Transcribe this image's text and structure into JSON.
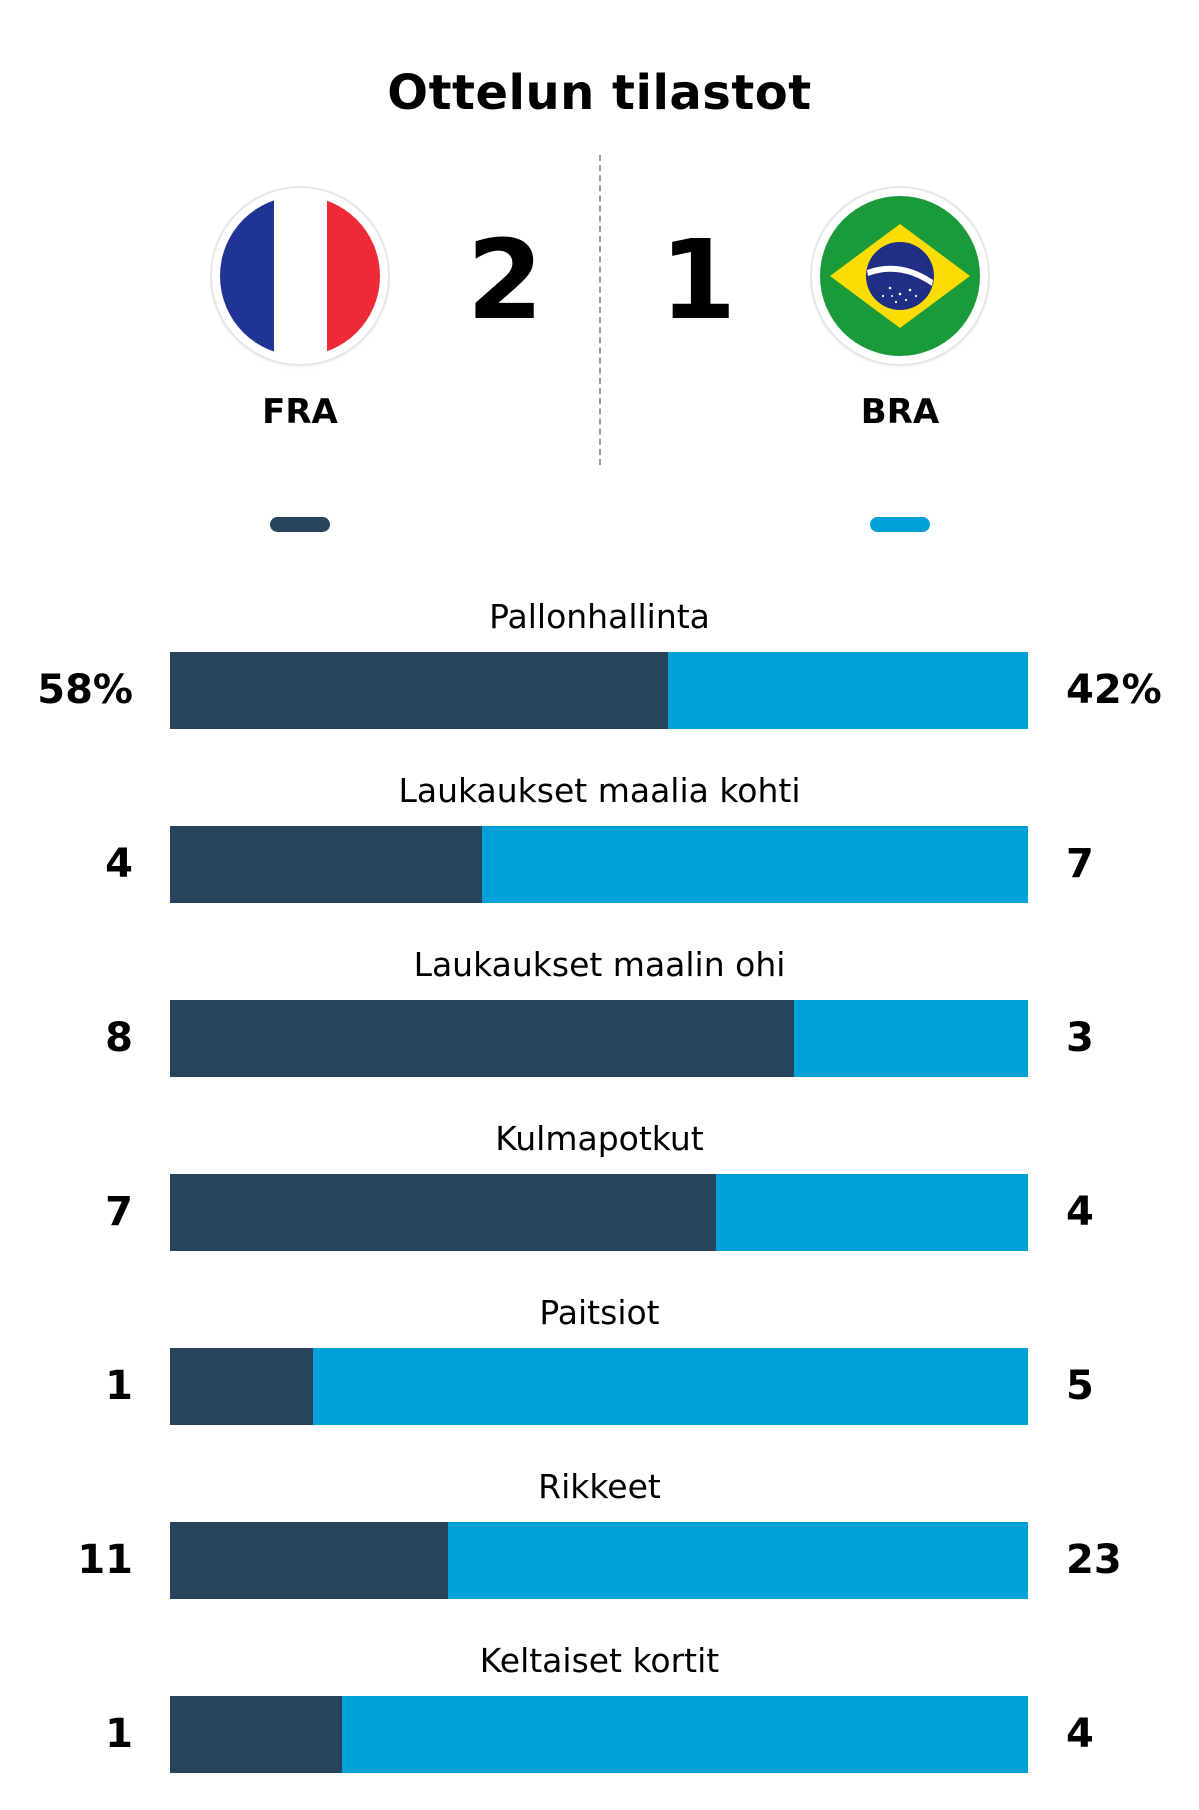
{
  "title": "Ottelun tilastot",
  "colors": {
    "home": "#27445c",
    "away": "#00a1d6",
    "divider": "#9a9a9a",
    "text": "#000000"
  },
  "teams": {
    "home": {
      "code": "FRA",
      "score": "2",
      "flag": "france-flag"
    },
    "away": {
      "code": "BRA",
      "score": "1",
      "flag": "brazil-flag"
    }
  },
  "chart_data": {
    "type": "bar",
    "categories": [
      "Pallonhallinta",
      "Laukaukset maalia kohti",
      "Laukaukset maalin ohi",
      "Kulmapotkut",
      "Paitsiot",
      "Rikkeet",
      "Keltaiset kortit"
    ],
    "series": [
      {
        "name": "FRA",
        "values": [
          58,
          4,
          8,
          7,
          1,
          11,
          1
        ]
      },
      {
        "name": "BRA",
        "values": [
          42,
          7,
          3,
          4,
          5,
          23,
          4
        ]
      }
    ],
    "display": {
      "home": [
        "58%",
        "4",
        "8",
        "7",
        "1",
        "11",
        "1"
      ],
      "away": [
        "42%",
        "7",
        "3",
        "4",
        "5",
        "23",
        "4"
      ]
    },
    "stacked": true,
    "normalized": true
  }
}
